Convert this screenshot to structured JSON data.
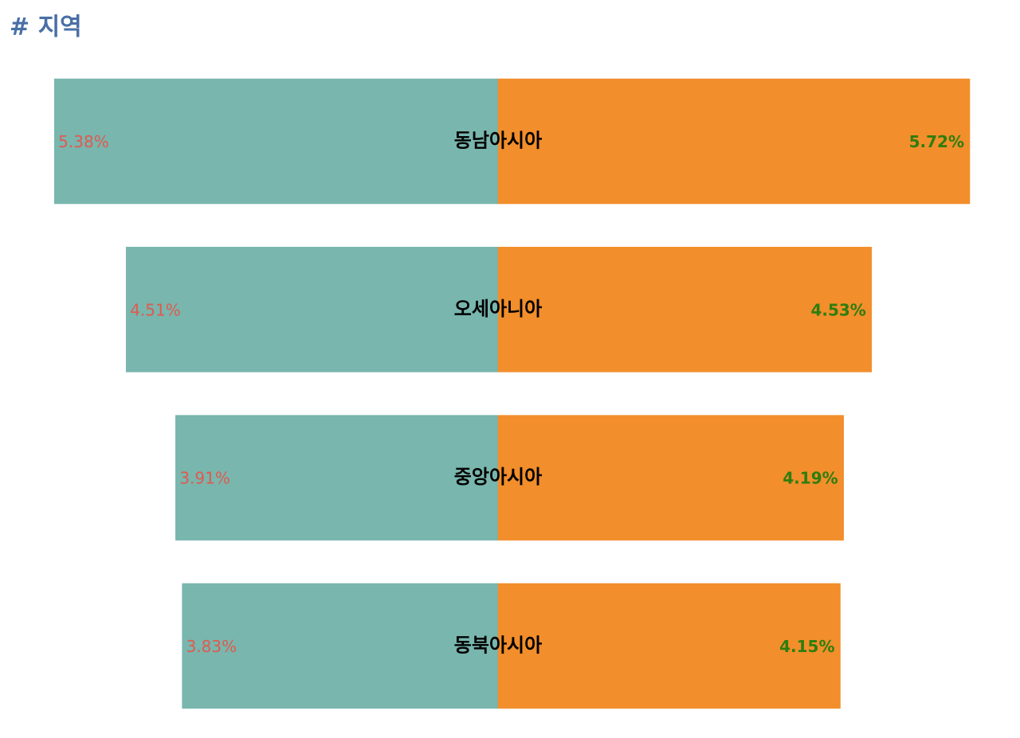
{
  "chart_data": {
    "type": "butterfly",
    "title": "# 지역",
    "categories": [
      "동남아시아",
      "오세아니아",
      "중앙아시아",
      "동북아시아"
    ],
    "series": [
      {
        "color": "#78b6ae",
        "label_color": "#e05a4f",
        "values": [
          5.38,
          4.51,
          3.91,
          3.83
        ],
        "value_labels": [
          "5.38%",
          "4.51%",
          "3.91%",
          "3.83%"
        ]
      },
      {
        "color": "#f28e2b",
        "label_color": "#2e7d0e",
        "values": [
          5.72,
          4.53,
          4.19,
          4.15
        ],
        "value_labels": [
          "5.72%",
          "4.53%",
          "4.19%",
          "4.15%"
        ]
      }
    ]
  }
}
